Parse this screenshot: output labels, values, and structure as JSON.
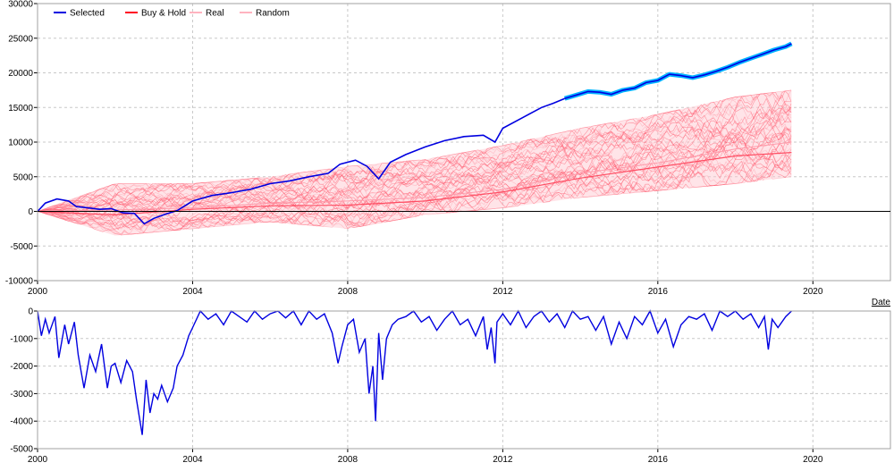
{
  "chart_data": [
    {
      "type": "line",
      "panel": "equity",
      "xlabel": "Date",
      "ylabel": "",
      "xlim": [
        2000.0,
        2022.0
      ],
      "ylim": [
        -10000,
        30000
      ],
      "xticks": [
        "2000",
        "2004",
        "2008",
        "2012",
        "2016",
        "2020"
      ],
      "yticks": [
        "-10000",
        "-5000",
        "0",
        "5000",
        "10000",
        "15000",
        "20000",
        "25000",
        "30000"
      ],
      "grid": true,
      "legend_position": "top-left",
      "series": [
        {
          "name": "Selected",
          "color": "#0000e0",
          "x": [
            2000.0,
            2000.2,
            2000.5,
            2000.8,
            2001.0,
            2001.3,
            2001.6,
            2001.9,
            2002.2,
            2002.5,
            2002.75,
            2003.0,
            2003.3,
            2003.6,
            2004.0,
            2004.5,
            2005.0,
            2005.5,
            2006.0,
            2006.5,
            2007.0,
            2007.5,
            2007.8,
            2008.2,
            2008.5,
            2008.8,
            2009.1,
            2009.5,
            2010.0,
            2010.5,
            2011.0,
            2011.5,
            2011.8,
            2012.0,
            2012.5,
            2013.0,
            2013.3,
            2013.6
          ],
          "values": [
            0,
            1200,
            1800,
            1500,
            700,
            500,
            300,
            400,
            -200,
            -300,
            -1800,
            -1000,
            -400,
            100,
            1500,
            2300,
            2700,
            3200,
            4000,
            4400,
            5000,
            5500,
            6800,
            7400,
            6500,
            4700,
            7100,
            8200,
            9300,
            10200,
            10800,
            11000,
            10000,
            12000,
            13500,
            15000,
            15600,
            16300
          ]
        },
        {
          "name": "Buy & Hold",
          "color": "#00b4ff",
          "x": [
            2013.6,
            2013.9,
            2014.2,
            2014.5,
            2014.8,
            2015.1,
            2015.4,
            2015.7,
            2016.0,
            2016.3,
            2016.6,
            2016.9,
            2017.2,
            2017.5,
            2017.8,
            2018.1,
            2018.4,
            2018.7,
            2019.0,
            2019.3,
            2019.45
          ],
          "values": [
            16300,
            16800,
            17300,
            17200,
            16900,
            17500,
            17800,
            18600,
            18900,
            19800,
            19600,
            19300,
            19700,
            20200,
            20800,
            21500,
            22100,
            22700,
            23300,
            23800,
            24200
          ]
        },
        {
          "name": "Real",
          "color": "#ff9aaa",
          "x": [
            2000.0,
            2002.0,
            2004.0,
            2006.0,
            2008.0,
            2010.0,
            2012.0,
            2014.0,
            2016.0,
            2018.0,
            2019.45
          ],
          "values": [
            0,
            200,
            500,
            1200,
            1500,
            2000,
            3200,
            5500,
            7000,
            9000,
            10000
          ]
        },
        {
          "name": "Random",
          "color": "#ff4d63",
          "x": [
            2000.0,
            2002.0,
            2004.0,
            2006.0,
            2008.0,
            2010.0,
            2012.0,
            2014.0,
            2016.0,
            2018.0,
            2019.45
          ],
          "values": [
            0,
            -500,
            300,
            800,
            900,
            1500,
            2800,
            4800,
            6400,
            8000,
            8500
          ],
          "band_low": [
            0,
            -3500,
            -2500,
            -1500,
            -2500,
            -500,
            500,
            2000,
            3000,
            4000,
            5000
          ],
          "band_high": [
            0,
            4000,
            4000,
            5000,
            6500,
            7500,
            9500,
            12000,
            14000,
            16500,
            17500
          ]
        }
      ]
    },
    {
      "type": "line",
      "panel": "drawdown",
      "xlabel": "",
      "ylabel": "",
      "xlim": [
        2000.0,
        2022.0
      ],
      "ylim": [
        -5000,
        0
      ],
      "xticks": [
        "2000",
        "2004",
        "2008",
        "2012",
        "2016",
        "2020"
      ],
      "yticks": [
        "-5000",
        "-4000",
        "-3000",
        "-2000",
        "-1000",
        "0"
      ],
      "grid": true,
      "series": [
        {
          "name": "Selected",
          "color": "#0000e0",
          "x": [
            2000.0,
            2000.1,
            2000.2,
            2000.3,
            2000.45,
            2000.55,
            2000.7,
            2000.8,
            2000.95,
            2001.05,
            2001.2,
            2001.35,
            2001.5,
            2001.65,
            2001.8,
            2001.9,
            2002.0,
            2002.15,
            2002.3,
            2002.45,
            2002.55,
            2002.7,
            2002.8,
            2002.9,
            2003.0,
            2003.1,
            2003.2,
            2003.35,
            2003.5,
            2003.6,
            2003.75,
            2003.9,
            2004.0,
            2004.2,
            2004.4,
            2004.6,
            2004.8,
            2005.0,
            2005.2,
            2005.4,
            2005.6,
            2005.8,
            2006.0,
            2006.2,
            2006.4,
            2006.6,
            2006.8,
            2007.0,
            2007.2,
            2007.4,
            2007.6,
            2007.75,
            2007.85,
            2008.0,
            2008.15,
            2008.3,
            2008.45,
            2008.55,
            2008.65,
            2008.72,
            2008.8,
            2008.9,
            2009.0,
            2009.15,
            2009.3,
            2009.5,
            2009.7,
            2009.9,
            2010.1,
            2010.3,
            2010.5,
            2010.7,
            2010.9,
            2011.1,
            2011.3,
            2011.5,
            2011.6,
            2011.7,
            2011.8,
            2011.85,
            2012.0,
            2012.2,
            2012.4,
            2012.6,
            2012.8,
            2013.0,
            2013.2,
            2013.4,
            2013.6,
            2013.8,
            2014.0,
            2014.2,
            2014.4,
            2014.6,
            2014.8,
            2015.0,
            2015.2,
            2015.4,
            2015.6,
            2015.8,
            2016.0,
            2016.2,
            2016.4,
            2016.6,
            2016.8,
            2017.0,
            2017.2,
            2017.4,
            2017.6,
            2017.8,
            2018.0,
            2018.2,
            2018.4,
            2018.6,
            2018.75,
            2018.85,
            2018.95,
            2019.1,
            2019.3,
            2019.45
          ],
          "values": [
            0,
            -900,
            -300,
            -800,
            -200,
            -1700,
            -500,
            -1200,
            -400,
            -1600,
            -2800,
            -1600,
            -2200,
            -1200,
            -2800,
            -2000,
            -1900,
            -2600,
            -1800,
            -2200,
            -3200,
            -4500,
            -2500,
            -3700,
            -3000,
            -3200,
            -2700,
            -3300,
            -2800,
            -2000,
            -1600,
            -900,
            -600,
            0,
            -300,
            -100,
            -500,
            0,
            -200,
            -400,
            0,
            -300,
            -100,
            0,
            -250,
            0,
            -500,
            0,
            -300,
            -100,
            -800,
            -1900,
            -1300,
            -500,
            -300,
            -1500,
            -1000,
            -3000,
            -2000,
            -4000,
            -800,
            -2500,
            -1000,
            -500,
            -300,
            -200,
            0,
            -400,
            -200,
            -700,
            -300,
            0,
            -500,
            -300,
            -900,
            -200,
            -1400,
            -600,
            -1900,
            -400,
            -100,
            -500,
            0,
            -600,
            -200,
            0,
            -400,
            -100,
            -600,
            0,
            -300,
            -200,
            -700,
            -200,
            -1200,
            -400,
            -1000,
            -200,
            -500,
            0,
            -800,
            -300,
            -1300,
            -500,
            -200,
            -300,
            -100,
            -700,
            0,
            -200,
            0,
            -300,
            -100,
            -600,
            -200,
            -1400,
            -300,
            -600,
            -200,
            0
          ]
        }
      ]
    }
  ]
}
